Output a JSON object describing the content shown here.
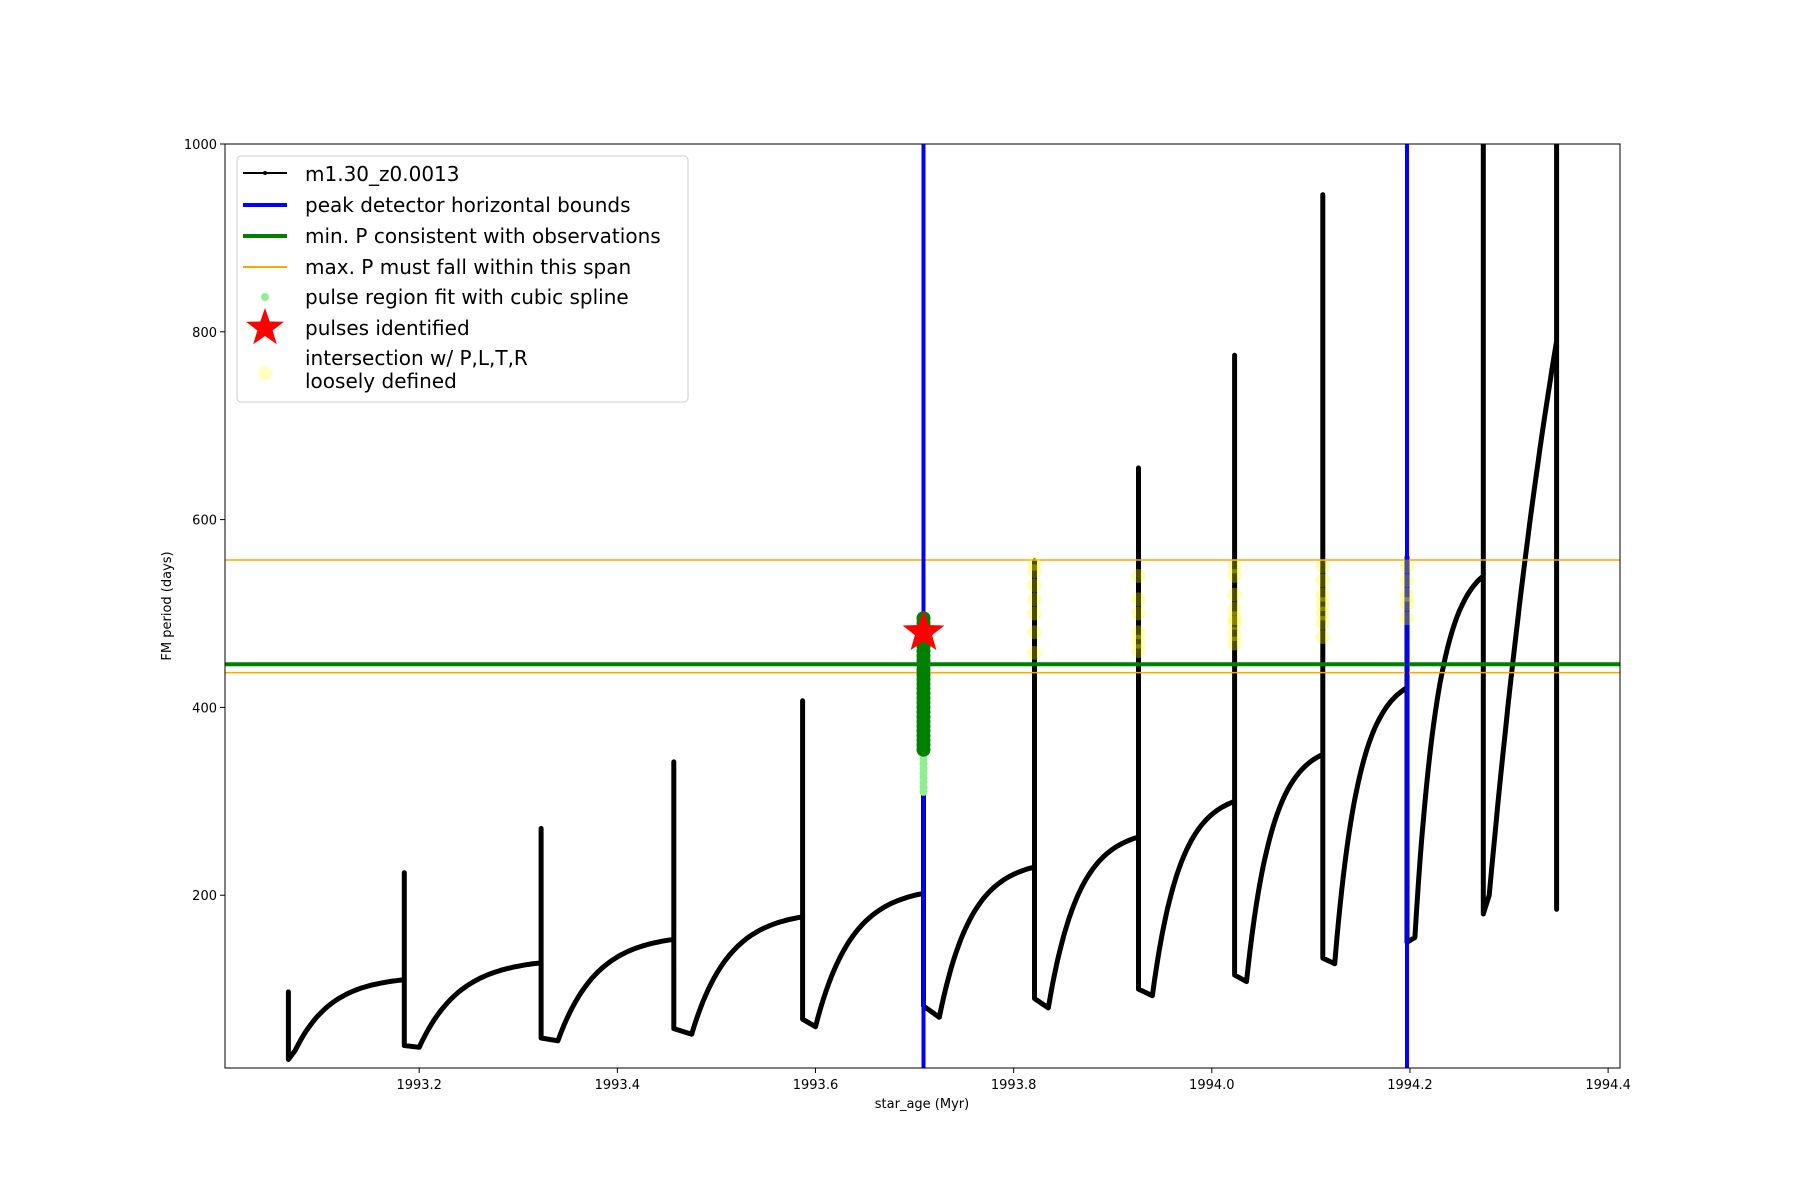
{
  "chart_data": {
    "type": "line",
    "title": "",
    "xlabel": "star_age (Myr)",
    "ylabel": "FM period (days)",
    "xlim": [
      1993.004,
      1994.412
    ],
    "ylim": [
      16,
      1000
    ],
    "grid": false,
    "legend_placement": "top-left",
    "x_ticks": [
      1993.2,
      1993.4,
      1993.6,
      1993.8,
      1994.0,
      1994.2,
      1994.4
    ],
    "x_tick_labels": [
      "1993.2",
      "1993.4",
      "1993.6",
      "1993.8",
      "1994.0",
      "1994.2",
      "1994.4"
    ],
    "y_ticks": [
      200,
      400,
      600,
      800,
      1000
    ],
    "y_tick_labels": [
      "200",
      "400",
      "600",
      "800",
      "1000"
    ],
    "series_name": "m1.30_z0.0013",
    "pulses": {
      "x": [
        1993.068,
        1993.185,
        1993.323,
        1993.457,
        1993.587,
        1993.709,
        1993.821,
        1993.926,
        1994.023,
        1994.112,
        1994.197,
        1994.274,
        1994.348
      ],
      "plateau_before": [
        60,
        110,
        128,
        153,
        177,
        202,
        230,
        262,
        300,
        350,
        421,
        540,
        790
      ],
      "spike_max": [
        97,
        224,
        271,
        342,
        407,
        497,
        556,
        655,
        775,
        946,
        560,
        1000,
        1000
      ],
      "spike_low": [
        25,
        40,
        48,
        58,
        68,
        82,
        90,
        100,
        115,
        133,
        150,
        180,
        185
      ],
      "dip_x": [
        1993.075,
        1993.2,
        1993.34,
        1993.475,
        1993.6,
        1993.725,
        1993.835,
        1993.94,
        1994.035,
        1994.124,
        1994.205,
        1994.28
      ],
      "dip_y": [
        35,
        38,
        45,
        52,
        60,
        70,
        80,
        93,
        108,
        127,
        155,
        200
      ]
    },
    "peak_detector_bounds_x": [
      1993.709,
      1994.197
    ],
    "min_P_observations": 446,
    "max_P_span": [
      437,
      557
    ],
    "spline_fit": {
      "x": 1993.709,
      "dark_range": [
        355,
        495
      ],
      "light_range": [
        310,
        355
      ]
    },
    "pulse_identified": {
      "x": 1993.709,
      "y": 480
    },
    "intersections": [
      {
        "x": 1993.821,
        "y": [
          458,
          480,
          500,
          515,
          530,
          545,
          553
        ]
      },
      {
        "x": 1993.926,
        "y": [
          460,
          470,
          480,
          500,
          515,
          540
        ]
      },
      {
        "x": 1994.023,
        "y": [
          468,
          478,
          490,
          495,
          505,
          520,
          540,
          550
        ]
      },
      {
        "x": 1994.112,
        "y": [
          475,
          490,
          500,
          510,
          520,
          535,
          550
        ]
      },
      {
        "x": 1994.197,
        "y": [
          495,
          510,
          520,
          535,
          550
        ]
      }
    ],
    "legend": [
      "m1.30_z0.0013",
      "peak detector horizontal bounds",
      "min. P consistent with observations",
      "max. P must fall within this span",
      "pulse region fit with cubic spline",
      "pulses identified",
      "intersection w/ P,L,T,R",
      "loosely defined"
    ],
    "colors": {
      "series": "#000000",
      "bounds": "#0000ff",
      "minP": "#008000",
      "maxP": "#ffa500",
      "spline": "#90ee90",
      "spline_dark": "#008000",
      "star": "#ff0000",
      "intersection": "#ffff00"
    }
  }
}
